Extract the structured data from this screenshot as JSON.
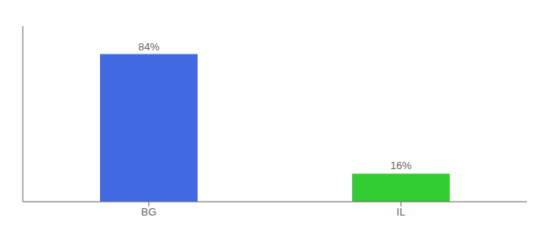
{
  "chart_data": {
    "type": "bar",
    "categories": [
      "BG",
      "IL"
    ],
    "values": [
      84,
      16
    ],
    "value_labels": [
      "84%",
      "16%"
    ],
    "colors": [
      "#4169e1",
      "#33cc33"
    ],
    "ylim": [
      0,
      100
    ],
    "data_labels": true,
    "tick_labels": "x",
    "grid": false
  }
}
